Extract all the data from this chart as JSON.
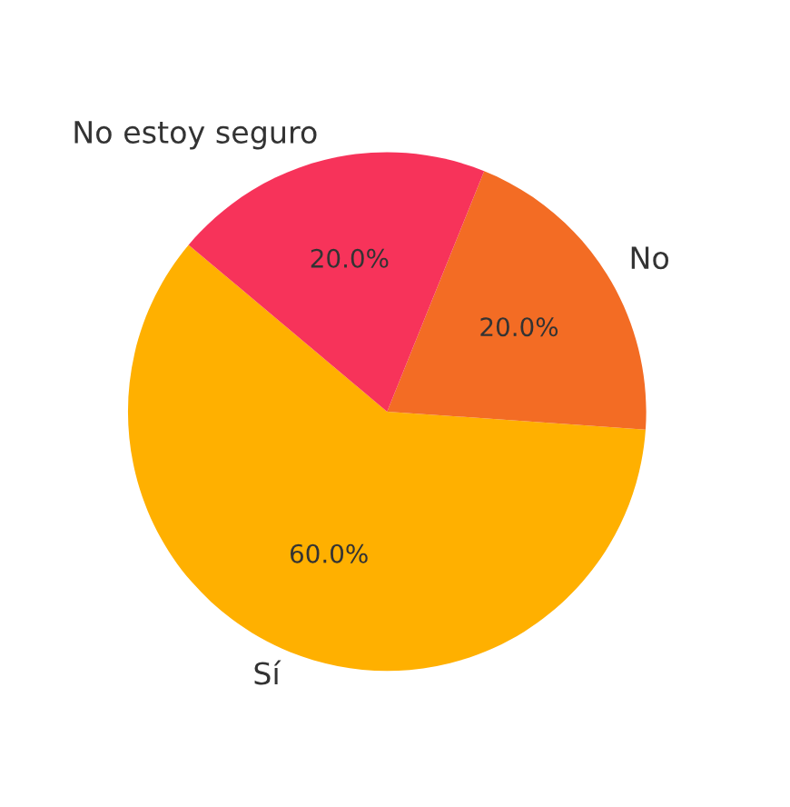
{
  "chart_data": {
    "type": "pie",
    "categories": [
      "Sí",
      "No",
      "No estoy seguro"
    ],
    "values": [
      60,
      20,
      20
    ],
    "colors": [
      "#ffb000",
      "#f36c24",
      "#f7335a"
    ],
    "value_labels": [
      "60.0%",
      "20.0%",
      "20.0%"
    ]
  }
}
